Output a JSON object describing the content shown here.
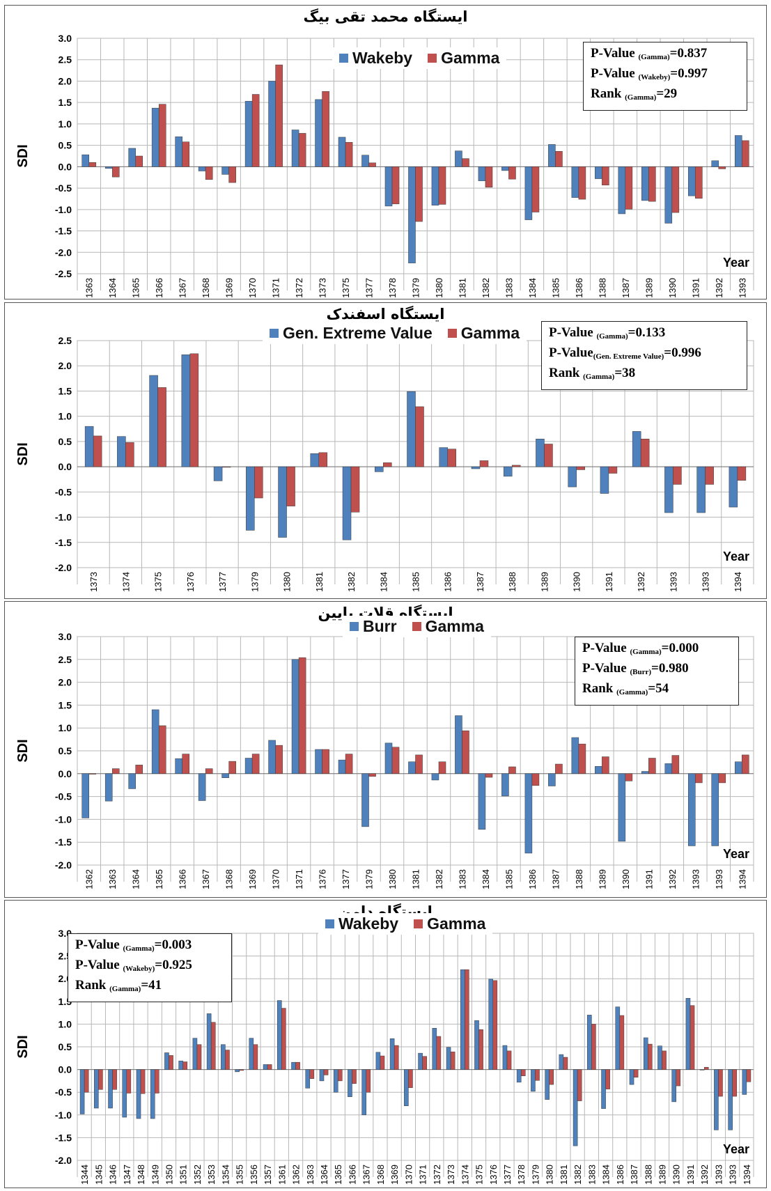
{
  "colors": {
    "blue": "#4F81BD",
    "red": "#C0504D",
    "grid": "#B7B7B7"
  },
  "panels": [
    {
      "title": "ایستگاه محمد تقی بیگ",
      "legend": [
        "Wakeby",
        "Gamma"
      ],
      "stats": [
        {
          "pre": "P-Value ",
          "sub": "(Gamma)",
          "post": "=0.837"
        },
        {
          "pre": "P-Value ",
          "sub": "(Wakeby)",
          "post": "=0.997"
        },
        {
          "pre": "Rank ",
          "sub": "(Gamma)",
          "post": "=29"
        }
      ],
      "xlabel": "Year",
      "ylabel": "SDI"
    },
    {
      "title": "ایستگاه اسفندک",
      "legend": [
        "Gen. Extreme Value",
        "Gamma"
      ],
      "stats": [
        {
          "pre": "P-Value ",
          "sub": "(Gamma)",
          "post": "=0.133"
        },
        {
          "pre": "P-Value",
          "sub": "(Gen. Extreme Value)",
          "post": "=0.996"
        },
        {
          "pre": "Rank ",
          "sub": "(Gamma)",
          "post": "=38"
        }
      ],
      "xlabel": "Year",
      "ylabel": "SDI"
    },
    {
      "title": "ایستگاه قلات پایین",
      "legend": [
        "Burr",
        "Gamma"
      ],
      "stats": [
        {
          "pre": "P-Value ",
          "sub": "(Gamma)",
          "post": "=0.000"
        },
        {
          "pre": "P-Value ",
          "sub": "(Burr)",
          "post": "=0.980"
        },
        {
          "pre": "Rank ",
          "sub": "(Gamma)",
          "post": "=54"
        }
      ],
      "xlabel": "Year",
      "ylabel": "SDI"
    },
    {
      "title": "ایستگاه دامن",
      "legend": [
        "Wakeby",
        "Gamma"
      ],
      "stats": [
        {
          "pre": "P-Value ",
          "sub": "(Gamma)",
          "post": "=0.003"
        },
        {
          "pre": "P-Value ",
          "sub": "(Wakeby)",
          "post": "=0.925"
        },
        {
          "pre": "Rank ",
          "sub": "(Gamma)",
          "post": "=41"
        }
      ],
      "xlabel": "Year",
      "ylabel": "SDI"
    }
  ],
  "chart_data": [
    {
      "type": "bar",
      "title": "ایستگاه محمد تقی بیگ",
      "xlabel": "Year",
      "ylabel": "SDI",
      "ylim": [
        -2.5,
        3.0
      ],
      "grid": true,
      "legend": "top-center",
      "categories": [
        "1363",
        "1364",
        "1365",
        "1366",
        "1367",
        "1368",
        "1369",
        "1370",
        "1371",
        "1372",
        "1373",
        "1375",
        "1377",
        "1378",
        "1379",
        "1380",
        "1381",
        "1382",
        "1383",
        "1384",
        "1385",
        "1386",
        "1388",
        "1387",
        "1389",
        "1390",
        "1391",
        "1392",
        "1393"
      ],
      "series": [
        {
          "name": "Wakeby",
          "values": [
            0.28,
            -0.04,
            0.43,
            1.37,
            0.7,
            -0.1,
            -0.18,
            1.53,
            2.0,
            0.86,
            1.57,
            0.69,
            0.27,
            -0.92,
            -2.25,
            -0.9,
            0.37,
            -0.33,
            -0.09,
            -1.24,
            0.52,
            -0.72,
            -0.28,
            -1.1,
            -0.79,
            -1.32,
            -0.68,
            0.14,
            0.73
          ]
        },
        {
          "name": "Gamma",
          "values": [
            0.1,
            -0.24,
            0.25,
            1.46,
            0.58,
            -0.3,
            -0.37,
            1.69,
            2.38,
            0.78,
            1.76,
            0.57,
            0.09,
            -0.87,
            -1.28,
            -0.88,
            0.19,
            -0.48,
            -0.29,
            -1.06,
            0.36,
            -0.76,
            -0.43,
            -0.99,
            -0.81,
            -1.07,
            -0.74,
            -0.05,
            0.61
          ]
        }
      ]
    },
    {
      "type": "bar",
      "title": "ایستگاه اسفندک",
      "xlabel": "Year",
      "ylabel": "SDI",
      "ylim": [
        -2.0,
        2.5
      ],
      "grid": true,
      "legend": "top-center",
      "categories": [
        "1373",
        "1374",
        "1375",
        "1376",
        "1377",
        "1379",
        "1380",
        "1381",
        "1382",
        "1384",
        "1385",
        "1386",
        "1387",
        "1388",
        "1389",
        "1390",
        "1391",
        "1392",
        "1393",
        "1393",
        "1394"
      ],
      "series": [
        {
          "name": "Gen. Extreme Value",
          "values": [
            0.8,
            0.6,
            1.81,
            2.22,
            -0.28,
            -1.26,
            -1.4,
            0.26,
            -1.45,
            -0.1,
            1.49,
            0.38,
            -0.04,
            -0.19,
            0.55,
            -0.4,
            -0.53,
            0.7,
            -0.91,
            -0.91,
            -0.8
          ]
        },
        {
          "name": "Gamma",
          "values": [
            0.61,
            0.48,
            1.57,
            2.24,
            0.0,
            -0.62,
            -0.78,
            0.28,
            -0.9,
            0.08,
            1.19,
            0.35,
            0.12,
            0.03,
            0.45,
            -0.06,
            -0.13,
            0.55,
            -0.35,
            -0.35,
            -0.27
          ]
        }
      ]
    },
    {
      "type": "bar",
      "title": "ایستگاه قلات پایین",
      "xlabel": "Year",
      "ylabel": "SDI",
      "ylim": [
        -2.0,
        3.0
      ],
      "grid": true,
      "legend": "top-center",
      "categories": [
        "1362",
        "1363",
        "1364",
        "1365",
        "1366",
        "1367",
        "1368",
        "1369",
        "1370",
        "1371",
        "1376",
        "1377",
        "1379",
        "1380",
        "1381",
        "1382",
        "1383",
        "1384",
        "1385",
        "1386",
        "1387",
        "1388",
        "1389",
        "1390",
        "1391",
        "1392",
        "1393",
        "1393",
        "1394"
      ],
      "series": [
        {
          "name": "Burr",
          "values": [
            -0.97,
            -0.6,
            -0.33,
            1.4,
            0.33,
            -0.59,
            -0.09,
            0.34,
            0.73,
            2.5,
            0.53,
            0.3,
            -1.16,
            0.67,
            0.26,
            -0.14,
            1.27,
            -1.22,
            -0.49,
            -1.74,
            -0.27,
            0.79,
            0.16,
            -1.48,
            0.05,
            0.22,
            -1.58,
            -1.58,
            0.26
          ]
        },
        {
          "name": "Gamma",
          "values": [
            -0.01,
            0.11,
            0.19,
            1.05,
            0.43,
            0.11,
            0.27,
            0.43,
            0.62,
            2.54,
            0.53,
            0.43,
            -0.06,
            0.58,
            0.41,
            0.26,
            0.94,
            -0.08,
            0.15,
            -0.26,
            0.21,
            0.65,
            0.37,
            -0.16,
            0.34,
            0.4,
            -0.2,
            -0.2,
            0.41
          ]
        }
      ]
    },
    {
      "type": "bar",
      "title": "ایستگاه دامن",
      "xlabel": "Year",
      "ylabel": "SDI",
      "ylim": [
        -2.0,
        3.0
      ],
      "grid": true,
      "legend": "top-center",
      "categories": [
        "1344",
        "1345",
        "1346",
        "1347",
        "1348",
        "1349",
        "1350",
        "1351",
        "1352",
        "1353",
        "1354",
        "1355",
        "1356",
        "1357",
        "1361",
        "1362",
        "1363",
        "1364",
        "1365",
        "1366",
        "1367",
        "1368",
        "1369",
        "1370",
        "1371",
        "1372",
        "1373",
        "1374",
        "1375",
        "1376",
        "1377",
        "1378",
        "1379",
        "1380",
        "1381",
        "1382",
        "1383",
        "1384",
        "1386",
        "1387",
        "1388",
        "1389",
        "1390",
        "1391",
        "1392",
        "1393",
        "1393",
        "1394"
      ],
      "series": [
        {
          "name": "Wakeby",
          "values": [
            -0.98,
            -0.85,
            -0.85,
            -1.05,
            -1.08,
            -1.08,
            0.37,
            0.19,
            0.69,
            1.23,
            0.55,
            -0.05,
            0.69,
            0.11,
            1.52,
            0.16,
            -0.41,
            -0.25,
            -0.5,
            -0.6,
            -1.0,
            0.38,
            0.68,
            -0.8,
            0.36,
            0.91,
            0.49,
            2.2,
            1.08,
            1.99,
            0.53,
            -0.28,
            -0.48,
            -0.66,
            0.33,
            -1.68,
            1.2,
            -0.86,
            1.38,
            -0.33,
            0.7,
            0.52,
            -0.71,
            1.57,
            0.0,
            -1.33,
            -1.33,
            -0.55
          ]
        },
        {
          "name": "Gamma",
          "values": [
            -0.5,
            -0.44,
            -0.44,
            -0.52,
            -0.53,
            -0.52,
            0.31,
            0.17,
            0.55,
            1.04,
            0.43,
            -0.02,
            0.55,
            0.11,
            1.35,
            0.16,
            -0.2,
            -0.12,
            -0.25,
            -0.31,
            -0.5,
            0.3,
            0.53,
            -0.4,
            0.29,
            0.73,
            0.39,
            2.2,
            0.88,
            1.96,
            0.41,
            -0.14,
            -0.24,
            -0.33,
            0.27,
            -0.69,
            1.0,
            -0.43,
            1.19,
            -0.17,
            0.56,
            0.41,
            -0.36,
            1.41,
            0.05,
            -0.59,
            -0.59,
            -0.27
          ]
        }
      ]
    }
  ]
}
